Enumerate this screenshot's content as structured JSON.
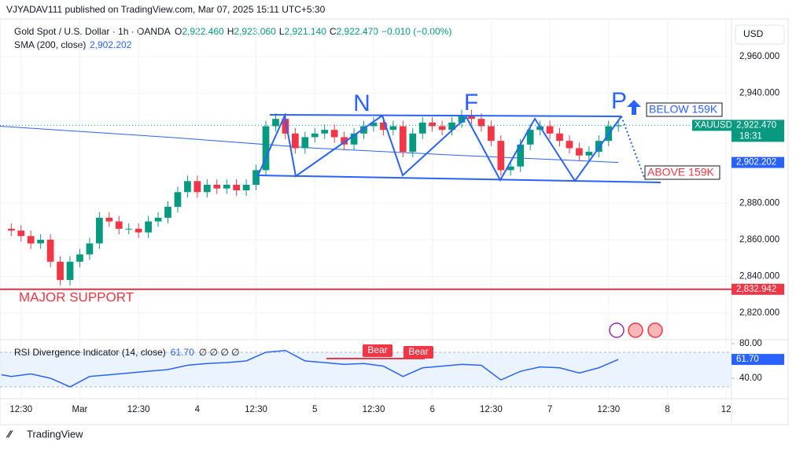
{
  "header": "VJYADAV111 published on TradingView.com, Mar 07, 2025 15:11 UTC+5:30",
  "legend": {
    "symbol": "Gold Spot / U.S. Dollar · 1h · OANDA",
    "ohlc": [
      "O",
      "2,922.460",
      "H",
      "2,923.060",
      "L",
      "2,921.140",
      "C",
      "2,922.470"
    ],
    "change": "−0.010 (−0.00%)"
  },
  "annotations": {
    "n": "N",
    "f": "F",
    "p": "P",
    "below": "BELOW 159K",
    "above": "ABOVE 159K",
    "bear1": "Bear",
    "bear2": "Bear"
  },
  "footer": "TradingView",
  "chart_data": [
    {
      "type": "candlestick",
      "currency": "USD",
      "symbol": "XAUUSD",
      "countdown": "18:31",
      "up_color": "#089981",
      "down_color": "#f23645",
      "xlim": [
        -4.3,
        145.1
      ],
      "ylim": [
        2806.7,
        2977.6
      ],
      "xticks": [
        {
          "value": 0,
          "label": "12:30"
        },
        {
          "value": 12,
          "label": "Mar"
        },
        {
          "value": 24,
          "label": "12:30"
        },
        {
          "value": 36,
          "label": "4"
        },
        {
          "value": 48,
          "label": "12:30"
        },
        {
          "value": 60,
          "label": "5"
        },
        {
          "value": 72,
          "label": "12:30"
        },
        {
          "value": 84,
          "label": "6"
        },
        {
          "value": 96,
          "label": "12:30"
        },
        {
          "value": 108,
          "label": "7"
        },
        {
          "value": 120,
          "label": "12:30"
        },
        {
          "value": 132,
          "label": "8"
        },
        {
          "value": 144,
          "label": "12"
        }
      ],
      "yticks": [
        {
          "value": 2960,
          "label": "2,960.000"
        },
        {
          "value": 2940,
          "label": "2,940.000"
        },
        {
          "value": 2880,
          "label": "2,880.000"
        },
        {
          "value": 2860,
          "label": "2,860.000"
        },
        {
          "value": 2840,
          "label": "2,840.000"
        },
        {
          "value": 2820,
          "label": "2,820.000"
        }
      ],
      "x": [
        -2,
        0,
        2,
        4,
        6,
        8,
        10,
        12,
        14,
        16,
        18,
        20,
        22,
        24,
        26,
        28,
        30,
        32,
        34,
        36,
        38,
        40,
        42,
        44,
        46,
        48,
        50,
        52,
        54,
        56,
        58,
        60,
        62,
        64,
        66,
        68,
        70,
        72,
        74,
        76,
        78,
        80,
        82,
        84,
        86,
        88,
        90,
        92,
        94,
        96,
        98,
        100,
        102,
        104,
        106,
        108,
        110,
        112,
        114,
        116,
        118,
        120,
        122
      ],
      "open": [
        2866,
        2865,
        2862,
        2858,
        2860,
        2848,
        2838,
        2848,
        2852,
        2858,
        2872,
        2870,
        2866,
        2866,
        2864,
        2870,
        2872,
        2878,
        2886,
        2892,
        2886,
        2890,
        2888,
        2890,
        2887,
        2890,
        2898,
        2922,
        2926,
        2918,
        2910,
        2916,
        2918,
        2920,
        2916,
        2912,
        2918,
        2922,
        2924,
        2920,
        2922,
        2908,
        2918,
        2924,
        2922,
        2920,
        2924,
        2928,
        2926,
        2922,
        2914,
        2898,
        2900,
        2912,
        2920,
        2922,
        2918,
        2914,
        2910,
        2906,
        2908,
        2914,
        2922
      ],
      "high": [
        2869,
        2868,
        2865,
        2863,
        2863,
        2851,
        2851,
        2855,
        2861,
        2875,
        2875,
        2873,
        2869,
        2869,
        2873,
        2875,
        2881,
        2889,
        2895,
        2895,
        2893,
        2893,
        2893,
        2893,
        2893,
        2901,
        2925,
        2929,
        2929,
        2921,
        2919,
        2921,
        2923,
        2923,
        2919,
        2921,
        2925,
        2927,
        2927,
        2925,
        2925,
        2921,
        2927,
        2927,
        2925,
        2927,
        2931,
        2931,
        2929,
        2925,
        2917,
        2903,
        2915,
        2923,
        2925,
        2925,
        2921,
        2917,
        2913,
        2911,
        2917,
        2925,
        2925
      ],
      "low": [
        2862,
        2859,
        2855,
        2855,
        2845,
        2835,
        2835,
        2845,
        2849,
        2855,
        2867,
        2863,
        2863,
        2861,
        2861,
        2867,
        2869,
        2875,
        2883,
        2883,
        2883,
        2885,
        2885,
        2884,
        2884,
        2887,
        2895,
        2919,
        2915,
        2907,
        2907,
        2913,
        2915,
        2913,
        2909,
        2909,
        2915,
        2919,
        2917,
        2917,
        2905,
        2905,
        2915,
        2919,
        2917,
        2917,
        2921,
        2923,
        2919,
        2911,
        2895,
        2895,
        2897,
        2909,
        2917,
        2915,
        2911,
        2907,
        2903,
        2903,
        2905,
        2911,
        2919
      ],
      "close": [
        2865,
        2862,
        2858,
        2860,
        2848,
        2838,
        2848,
        2852,
        2858,
        2872,
        2870,
        2866,
        2866,
        2864,
        2870,
        2872,
        2878,
        2886,
        2892,
        2886,
        2890,
        2888,
        2890,
        2887,
        2890,
        2898,
        2922,
        2926,
        2918,
        2910,
        2916,
        2918,
        2920,
        2916,
        2912,
        2918,
        2922,
        2924,
        2920,
        2922,
        2908,
        2918,
        2924,
        2922,
        2920,
        2924,
        2928,
        2926,
        2922,
        2914,
        2898,
        2900,
        2912,
        2920,
        2922,
        2918,
        2914,
        2910,
        2906,
        2908,
        2914,
        2922,
        2922.47
      ],
      "last_price": {
        "value": 2922.47,
        "label": "2,922.470"
      },
      "series": [
        {
          "name": "SMA (200, close)",
          "color": "#2962ff",
          "x": [
            -4.3,
            30,
            60,
            90,
            122
          ],
          "values": [
            2922,
            2916,
            2910,
            2906,
            2902.202
          ],
          "last": {
            "value": 2902.202,
            "label": "2,902.202"
          }
        }
      ],
      "support": {
        "name": "MAJOR SUPPORT",
        "value": 2832.942,
        "label": "2,832.942",
        "color": "#f23645"
      }
    },
    {
      "type": "line",
      "title": "RSI Divergence Indicator (14, close)",
      "extra": "∅ ∅ ∅ ∅",
      "color": "#2962ff",
      "xlim": [
        -4.3,
        145.1
      ],
      "ylim": [
        20,
        84.5
      ],
      "yticks": [
        {
          "value": 80,
          "label": "80.00"
        },
        {
          "value": 40,
          "label": "40.00"
        }
      ],
      "band": [
        30,
        70
      ],
      "x": [
        -4,
        -2,
        2,
        6,
        10,
        14,
        18,
        22,
        26,
        30,
        34,
        38,
        42,
        46,
        50,
        54,
        58,
        62,
        66,
        70,
        74,
        78,
        82,
        86,
        90,
        94,
        98,
        102,
        106,
        110,
        114,
        118,
        122
      ],
      "values": [
        44,
        42,
        45,
        40,
        30,
        42,
        44,
        46,
        48,
        50,
        55,
        57,
        58,
        60,
        70,
        72,
        60,
        58,
        56,
        57,
        54,
        42,
        52,
        54,
        56,
        55,
        38,
        48,
        53,
        52,
        46,
        52,
        61.7
      ],
      "last": {
        "value": 61.7,
        "label": "61.70"
      }
    }
  ]
}
